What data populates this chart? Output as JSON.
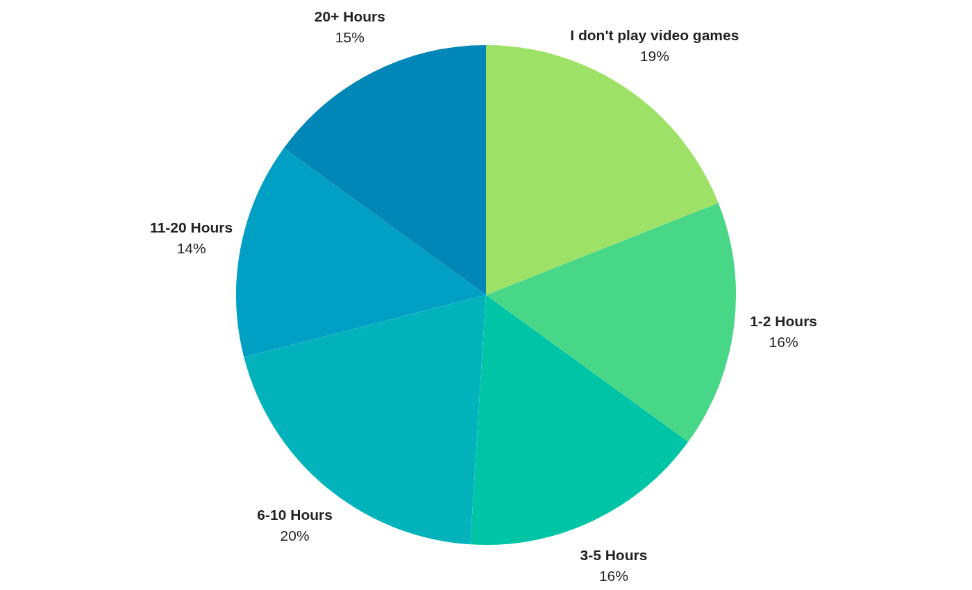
{
  "chart_data": {
    "type": "pie",
    "categories": [
      "I don't play video games",
      "1-2 Hours",
      "3-5 Hours",
      "6-10 Hours",
      "11-20 Hours",
      "20+ Hours"
    ],
    "values": [
      19,
      16,
      16,
      20,
      14,
      15
    ],
    "colors": [
      "#9de266",
      "#48d687",
      "#00c4a6",
      "#02b3bb",
      "#009fc4",
      "#0087b7"
    ],
    "value_labels": [
      "19%",
      "16%",
      "16%",
      "20%",
      "14%",
      "15%"
    ],
    "legend": false
  }
}
